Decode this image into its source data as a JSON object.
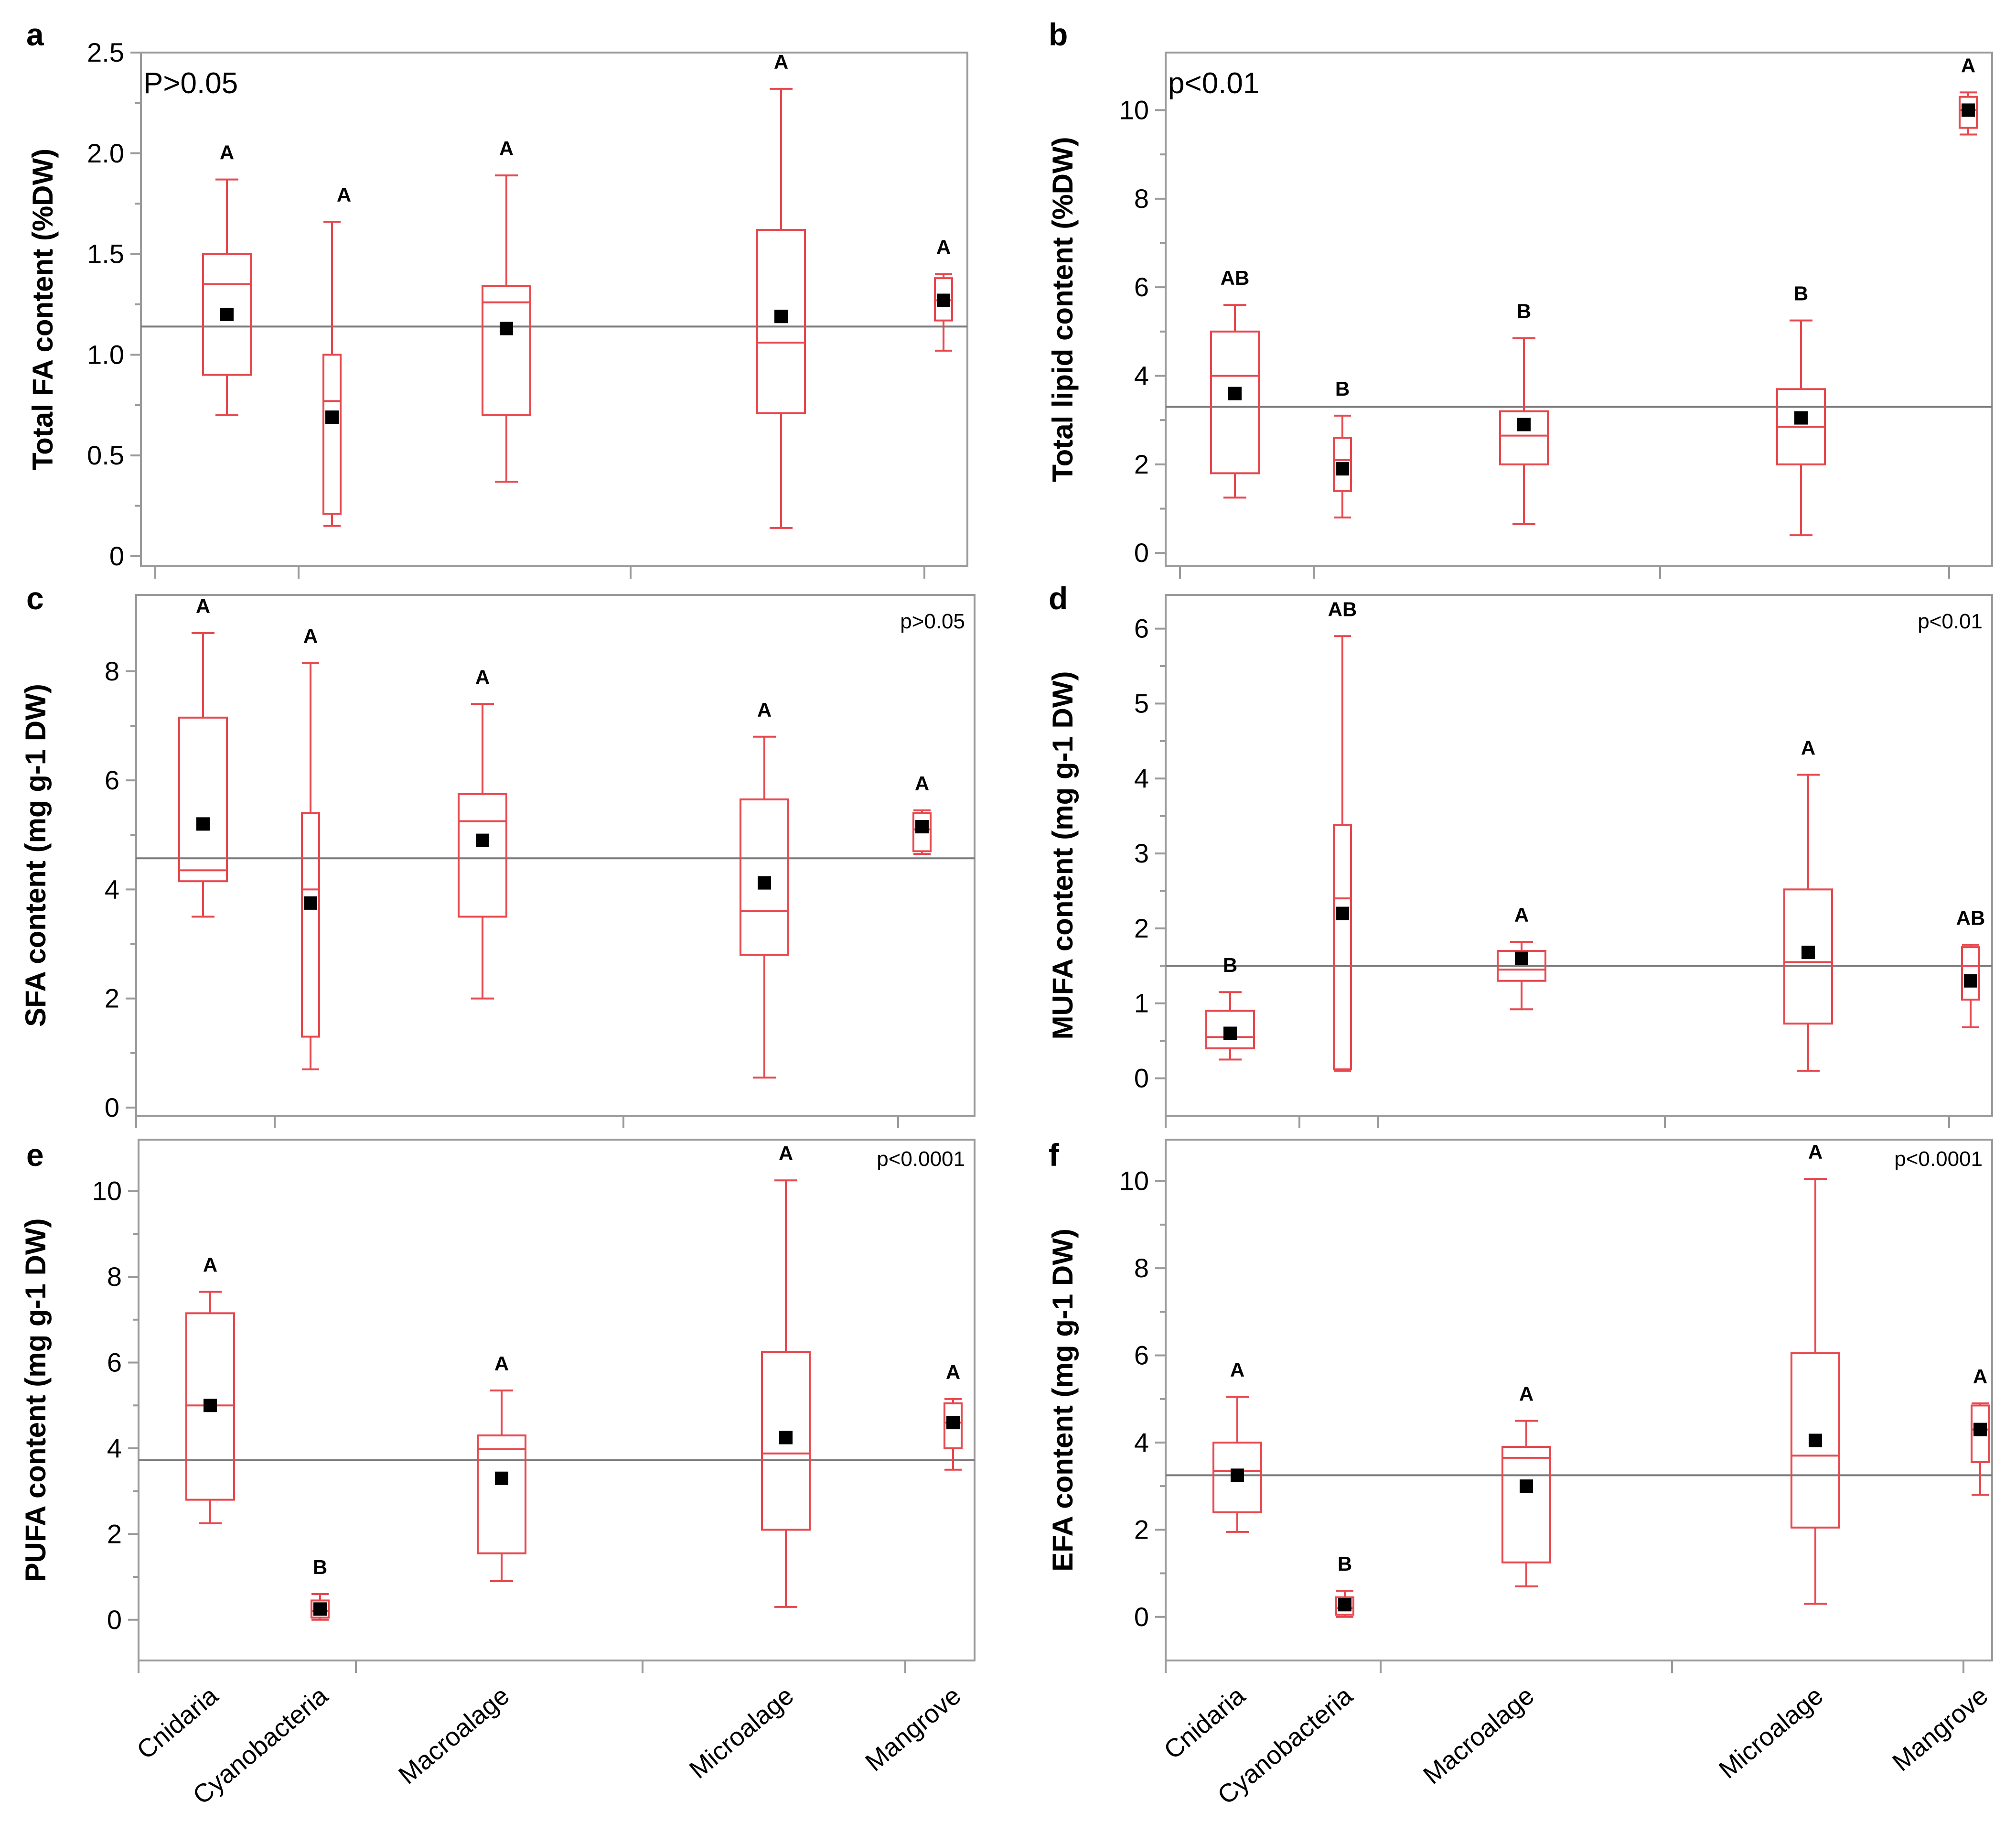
{
  "categories": [
    "Cnidaria",
    "Cyanobacteria",
    "Macroalage",
    "Microalage",
    "Mangrove"
  ],
  "chart_data": [
    {
      "panel": "a",
      "type": "box",
      "ylabel": "Total FA content (%DW)",
      "pvalue": "P>0.05",
      "ylim": [
        -0.05,
        2.5
      ],
      "yticks": [
        0,
        0.5,
        1.0,
        1.5,
        2.0,
        2.5
      ],
      "ytick_labels": [
        "0",
        "0.5",
        "1.0",
        "1.5",
        "2.0",
        "2.5"
      ],
      "grand_mean": 1.14,
      "groups": [
        {
          "category": "Cnidaria",
          "min": 0.7,
          "q1": 0.9,
          "median": 1.35,
          "q3": 1.5,
          "max": 1.87,
          "mean": 1.2,
          "letter": "A"
        },
        {
          "category": "Cyanobacteria",
          "min": 0.15,
          "q1": 0.21,
          "median": 0.77,
          "q3": 1.0,
          "max": 1.66,
          "mean": 0.69,
          "letter": "A"
        },
        {
          "category": "Macroalage",
          "min": 0.37,
          "q1": 0.7,
          "median": 1.26,
          "q3": 1.34,
          "max": 1.89,
          "mean": 1.13,
          "letter": "A"
        },
        {
          "category": "Microalage",
          "min": 0.14,
          "q1": 0.71,
          "median": 1.06,
          "q3": 1.62,
          "max": 2.32,
          "mean": 1.19,
          "letter": "A"
        },
        {
          "category": "Mangrove",
          "min": 1.02,
          "q1": 1.17,
          "median": 1.27,
          "q3": 1.38,
          "max": 1.4,
          "mean": 1.27,
          "letter": "A"
        }
      ]
    },
    {
      "panel": "b",
      "type": "box",
      "ylabel": "Total lipid content (%DW)",
      "pvalue": "p<0.01",
      "ylim": [
        -0.3,
        11.3
      ],
      "yticks": [
        0,
        2,
        4,
        6,
        8,
        10
      ],
      "ytick_labels": [
        "0",
        "2",
        "4",
        "6",
        "8",
        "10"
      ],
      "grand_mean": 3.3,
      "groups": [
        {
          "category": "Cnidaria",
          "min": 1.25,
          "q1": 1.8,
          "median": 4.0,
          "q3": 5.0,
          "max": 5.6,
          "mean": 3.6,
          "letter": "AB"
        },
        {
          "category": "Cyanobacteria",
          "min": 0.8,
          "q1": 1.4,
          "median": 2.1,
          "q3": 2.6,
          "max": 3.1,
          "mean": 1.9,
          "letter": "B"
        },
        {
          "category": "Macroalage",
          "min": 0.65,
          "q1": 2.0,
          "median": 2.65,
          "q3": 3.2,
          "max": 4.85,
          "mean": 2.9,
          "letter": "B"
        },
        {
          "category": "Microalage",
          "min": 0.4,
          "q1": 2.0,
          "median": 2.85,
          "q3": 3.7,
          "max": 5.25,
          "mean": 3.05,
          "letter": "B"
        },
        {
          "category": "Mangrove",
          "min": 9.45,
          "q1": 9.6,
          "median": 10.0,
          "q3": 10.3,
          "max": 10.4,
          "mean": 10.0,
          "letter": "A"
        }
      ]
    },
    {
      "panel": "c",
      "type": "box",
      "ylabel": "SFA content (mg g-1 DW)",
      "pvalue": "p>0.05",
      "ylim": [
        -0.15,
        9.4
      ],
      "yticks": [
        0,
        2,
        4,
        6,
        8
      ],
      "ytick_labels": [
        "0",
        "2",
        "4",
        "6",
        "8"
      ],
      "grand_mean": 4.57,
      "groups": [
        {
          "category": "Cnidaria",
          "min": 3.5,
          "q1": 4.15,
          "median": 4.35,
          "q3": 7.15,
          "max": 8.7,
          "mean": 5.2,
          "letter": "A"
        },
        {
          "category": "Cyanobacteria",
          "min": 0.7,
          "q1": 1.3,
          "median": 4.0,
          "q3": 5.4,
          "max": 8.15,
          "mean": 3.75,
          "letter": "A"
        },
        {
          "category": "Macroalage",
          "min": 2.0,
          "q1": 3.5,
          "median": 5.25,
          "q3": 5.75,
          "max": 7.4,
          "mean": 4.9,
          "letter": "A"
        },
        {
          "category": "Microalage",
          "min": 0.55,
          "q1": 2.8,
          "median": 3.6,
          "q3": 5.65,
          "max": 6.8,
          "mean": 4.12,
          "letter": "A"
        },
        {
          "category": "Mangrove",
          "min": 4.65,
          "q1": 4.7,
          "median": 5.1,
          "q3": 5.4,
          "max": 5.45,
          "mean": 5.15,
          "letter": "A"
        }
      ]
    },
    {
      "panel": "d",
      "type": "box",
      "ylabel": "MUFA content (mg g-1 DW)",
      "pvalue": "p<0.01",
      "ylim": [
        -0.5,
        6.45
      ],
      "yticks": [
        0,
        1,
        2,
        3,
        4,
        5,
        6
      ],
      "ytick_labels": [
        "0",
        "1",
        "2",
        "3",
        "4",
        "5",
        "6"
      ],
      "grand_mean": 1.5,
      "groups": [
        {
          "category": "Cnidaria",
          "min": 0.25,
          "q1": 0.4,
          "median": 0.55,
          "q3": 0.9,
          "max": 1.15,
          "mean": 0.6,
          "letter": "B"
        },
        {
          "category": "Cyanobacteria",
          "min": 0.1,
          "q1": 0.12,
          "median": 2.4,
          "q3": 3.38,
          "max": 5.9,
          "mean": 2.2,
          "letter": "AB"
        },
        {
          "category": "Macroalage",
          "min": 0.92,
          "q1": 1.3,
          "median": 1.45,
          "q3": 1.7,
          "max": 1.82,
          "mean": 1.6,
          "letter": "A"
        },
        {
          "category": "Microalage",
          "min": 0.1,
          "q1": 0.73,
          "median": 1.55,
          "q3": 2.52,
          "max": 4.05,
          "mean": 1.68,
          "letter": "A"
        },
        {
          "category": "Mangrove",
          "min": 0.68,
          "q1": 1.05,
          "median": 1.5,
          "q3": 1.75,
          "max": 1.78,
          "mean": 1.3,
          "letter": "AB"
        }
      ]
    },
    {
      "panel": "e",
      "type": "box",
      "ylabel": "PUFA content (mg g-1 DW)",
      "pvalue": "p<0.0001",
      "ylim": [
        -0.95,
        11.2
      ],
      "yticks": [
        0,
        2,
        4,
        6,
        8,
        10
      ],
      "ytick_labels": [
        "0",
        "2",
        "4",
        "6",
        "8",
        "10"
      ],
      "grand_mean": 3.72,
      "groups": [
        {
          "category": "Cnidaria",
          "min": 2.25,
          "q1": 2.8,
          "median": 5.0,
          "q3": 7.15,
          "max": 7.65,
          "mean": 5.0,
          "letter": "A"
        },
        {
          "category": "Cyanobacteria",
          "min": 0.0,
          "q1": 0.05,
          "median": 0.2,
          "q3": 0.45,
          "max": 0.6,
          "mean": 0.25,
          "letter": "B"
        },
        {
          "category": "Macroalage",
          "min": 0.9,
          "q1": 1.55,
          "median": 3.98,
          "q3": 4.3,
          "max": 5.35,
          "mean": 3.3,
          "letter": "A"
        },
        {
          "category": "Microalage",
          "min": 0.3,
          "q1": 2.1,
          "median": 3.88,
          "q3": 6.25,
          "max": 10.25,
          "mean": 4.25,
          "letter": "A"
        },
        {
          "category": "Mangrove",
          "min": 3.5,
          "q1": 4.0,
          "median": 4.6,
          "q3": 5.05,
          "max": 5.15,
          "mean": 4.6,
          "letter": "A"
        }
      ]
    },
    {
      "panel": "f",
      "type": "box",
      "ylabel": "EFA content (mg g-1 DW)",
      "pvalue": "p<0.0001",
      "ylim": [
        -1.0,
        10.95
      ],
      "yticks": [
        0,
        2,
        4,
        6,
        8,
        10
      ],
      "ytick_labels": [
        "0",
        "2",
        "4",
        "6",
        "8",
        "10"
      ],
      "grand_mean": 3.25,
      "groups": [
        {
          "category": "Cnidaria",
          "min": 1.95,
          "q1": 2.4,
          "median": 3.35,
          "q3": 4.0,
          "max": 5.05,
          "mean": 3.25,
          "letter": "A"
        },
        {
          "category": "Cyanobacteria",
          "min": 0.0,
          "q1": 0.05,
          "median": 0.2,
          "q3": 0.45,
          "max": 0.6,
          "mean": 0.28,
          "letter": "B"
        },
        {
          "category": "Macroalage",
          "min": 0.7,
          "q1": 1.25,
          "median": 3.65,
          "q3": 3.9,
          "max": 4.5,
          "mean": 3.0,
          "letter": "A"
        },
        {
          "category": "Microalage",
          "min": 0.3,
          "q1": 2.05,
          "median": 3.7,
          "q3": 6.05,
          "max": 10.05,
          "mean": 4.05,
          "letter": "A"
        },
        {
          "category": "Mangrove",
          "min": 2.8,
          "q1": 3.55,
          "median": 4.3,
          "q3": 4.85,
          "max": 4.9,
          "mean": 4.3,
          "letter": "A"
        }
      ]
    }
  ]
}
